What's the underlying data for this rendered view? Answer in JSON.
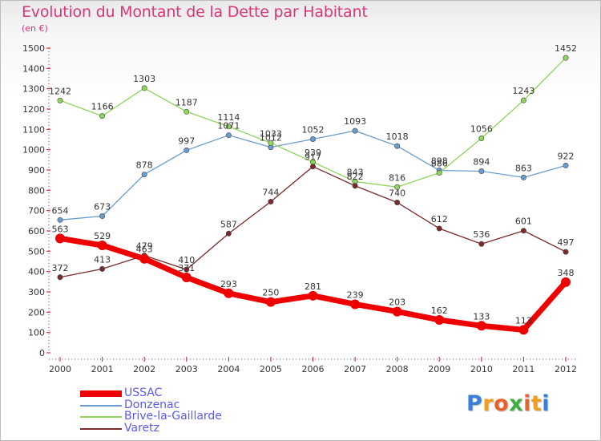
{
  "title": "Evolution du Montant de la Dette par Habitant",
  "subtitle": "(en €)",
  "logo": {
    "text": "Proxiti",
    "letters": [
      {
        "ch": "P",
        "color": "#3c7fd8"
      },
      {
        "ch": "r",
        "color": "#f0a020"
      },
      {
        "ch": "o",
        "color": "#e8622c"
      },
      {
        "ch": "x",
        "color": "#3fae3f"
      },
      {
        "ch": "i",
        "color": "#e8622c"
      },
      {
        "ch": "t",
        "color": "#f0a020"
      },
      {
        "ch": "i",
        "color": "#3c7fd8"
      }
    ]
  },
  "chart_data": {
    "type": "line",
    "title": "Evolution du Montant de la Dette par Habitant",
    "subtitle": "(en €)",
    "x": [
      "2000",
      "2001",
      "2002",
      "2003",
      "2004",
      "2005",
      "2006",
      "2007",
      "2008",
      "2009",
      "2010",
      "2011",
      "2012"
    ],
    "ylim": [
      0,
      1500
    ],
    "yticks": [
      0,
      100,
      200,
      300,
      400,
      500,
      600,
      700,
      800,
      900,
      1000,
      1100,
      1200,
      1300,
      1400,
      1500
    ],
    "grid": false,
    "legend": "bottom-left",
    "series": [
      {
        "name": "USSAC",
        "color": "#ee0000",
        "values": [
          563,
          529,
          463,
          371,
          293,
          250,
          281,
          239,
          203,
          162,
          133,
          113,
          348
        ]
      },
      {
        "name": "Donzenac",
        "color": "#6a9ccf",
        "values": [
          654,
          673,
          878,
          997,
          1071,
          1012,
          1052,
          1093,
          1018,
          898,
          894,
          863,
          922
        ]
      },
      {
        "name": "Brive-la-Gaillarde",
        "color": "#8fd45c",
        "values": [
          1242,
          1166,
          1303,
          1187,
          1114,
          1033,
          939,
          843,
          816,
          886,
          1056,
          1243,
          1452
        ]
      },
      {
        "name": "Varetz",
        "color": "#7a2a2a",
        "values": [
          372,
          413,
          479,
          410,
          587,
          744,
          917,
          822,
          740,
          612,
          536,
          601,
          497
        ]
      }
    ]
  }
}
